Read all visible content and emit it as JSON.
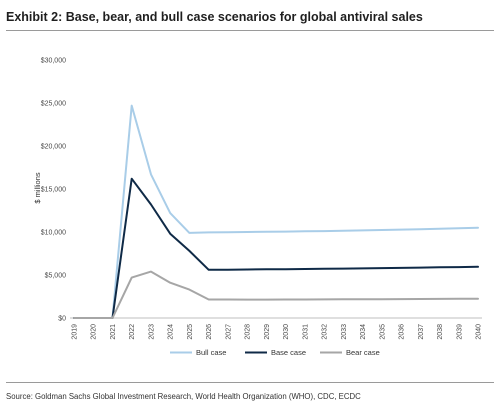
{
  "title": "Exhibit 2: Base, bear, and bull case scenarios for global antiviral sales",
  "source": "Source: Goldman Sachs Global Investment Research, World Health Organization (WHO), CDC, ECDC",
  "chart_data": {
    "type": "line",
    "title": "",
    "xlabel": "",
    "ylabel": "$ millions",
    "x": [
      "2019",
      "2020",
      "2021",
      "2022",
      "2023",
      "2024",
      "2025",
      "2026",
      "2027",
      "2028",
      "2029",
      "2030",
      "2031",
      "2032",
      "2033",
      "2034",
      "2035",
      "2036",
      "2037",
      "2038",
      "2039",
      "2040"
    ],
    "ylim": [
      0,
      30000
    ],
    "yticks": [
      {
        "value": 0,
        "label": "$0"
      },
      {
        "value": 5000,
        "label": "$5,000"
      },
      {
        "value": 10000,
        "label": "$10,000"
      },
      {
        "value": 15000,
        "label": "$15,000"
      },
      {
        "value": 20000,
        "label": "$20,000"
      },
      {
        "value": 25000,
        "label": "$25,000"
      },
      {
        "value": 30000,
        "label": "$30,000"
      }
    ],
    "grid": false,
    "legend_position": "bottom",
    "series": [
      {
        "name": "Bull case",
        "color": "#a9cde8",
        "values": [
          0,
          0,
          0,
          24700,
          16700,
          12200,
          9900,
          9950,
          9980,
          10000,
          10020,
          10050,
          10080,
          10110,
          10150,
          10190,
          10230,
          10280,
          10330,
          10380,
          10430,
          10500
        ]
      },
      {
        "name": "Base case",
        "color": "#0f2a47",
        "values": [
          0,
          0,
          0,
          16200,
          13200,
          9800,
          7800,
          5600,
          5620,
          5640,
          5660,
          5680,
          5700,
          5720,
          5740,
          5770,
          5800,
          5830,
          5860,
          5890,
          5920,
          5950
        ]
      },
      {
        "name": "Bear case",
        "color": "#a6a6a6",
        "values": [
          0,
          0,
          0,
          4700,
          5400,
          4100,
          3300,
          2150,
          2150,
          2140,
          2140,
          2150,
          2150,
          2160,
          2170,
          2180,
          2190,
          2200,
          2210,
          2220,
          2230,
          2240
        ]
      }
    ]
  }
}
